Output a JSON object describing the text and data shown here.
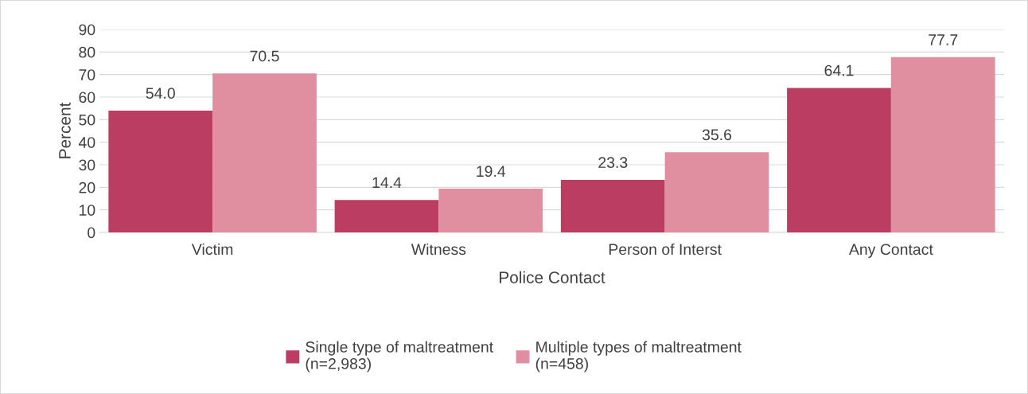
{
  "chart_data": {
    "type": "bar",
    "xlabel": "Police Contact",
    "ylabel": "Percent",
    "categories": [
      "Victim",
      "Witness",
      "Person of Interst",
      "Any Contact"
    ],
    "series": [
      {
        "name": "Single type of maltreatment\n(n=2,983)",
        "color": "#bc3d62",
        "values": [
          54.0,
          14.4,
          23.3,
          64.1
        ],
        "value_labels": [
          "54.0",
          "14.4",
          "23.3",
          "64.1"
        ]
      },
      {
        "name": "Multiple types of maltreatment\n(n=458)",
        "color": "#e08fa1",
        "values": [
          70.5,
          19.4,
          35.6,
          77.7
        ],
        "value_labels": [
          "70.5",
          "19.4",
          "35.6",
          "77.7"
        ]
      }
    ],
    "ylim": [
      0,
      90
    ],
    "yticks": [
      0,
      10,
      20,
      30,
      40,
      50,
      60,
      70,
      80,
      90
    ],
    "grid": "y",
    "legend": "bottom"
  }
}
